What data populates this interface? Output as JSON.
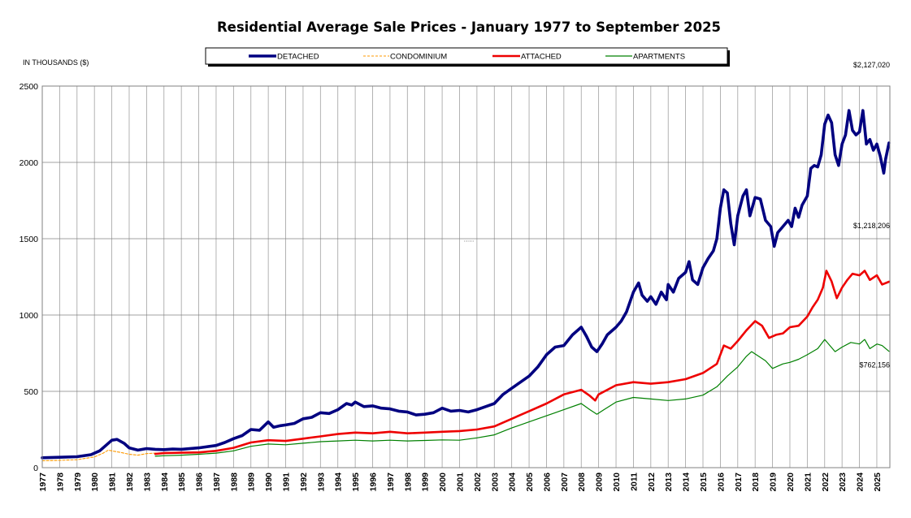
{
  "chart_data": {
    "type": "line",
    "title": "Residential Average Sale Prices  -  January 1977 to September 2025",
    "ylabel": "IN THOUSANDS ($)",
    "xlabel": "",
    "ylim": [
      0,
      2500
    ],
    "xlim": [
      1977.0,
      2025.75
    ],
    "y_ticks": [
      0,
      500,
      1000,
      1500,
      2000,
      2500
    ],
    "x_tick_labels": [
      "1977",
      "1978",
      "1979",
      "1980",
      "1981",
      "1982",
      "1983",
      "1984",
      "1985",
      "1986",
      "1987",
      "1988",
      "1989",
      "1990",
      "1991",
      "1992",
      "1993",
      "1994",
      "1995",
      "1996",
      "1997",
      "1998",
      "1999",
      "2000",
      "2001",
      "2002",
      "2003",
      "2004",
      "2005",
      "2006",
      "2007",
      "2008",
      "2009",
      "2010",
      "2011",
      "2012",
      "2013",
      "2014",
      "2015",
      "2016",
      "2017",
      "2018",
      "2019",
      "2020",
      "2021",
      "2022",
      "2023",
      "2024",
      "2025"
    ],
    "grid": true,
    "legend_position": "top-center",
    "series": [
      {
        "name": "DETACHED",
        "color": "#000080",
        "style": "solid-thick",
        "points": [
          [
            1977,
            65
          ],
          [
            1978,
            68
          ],
          [
            1979,
            72
          ],
          [
            1979.8,
            85
          ],
          [
            1980.3,
            110
          ],
          [
            1980.7,
            150
          ],
          [
            1981,
            180
          ],
          [
            1981.3,
            185
          ],
          [
            1981.7,
            160
          ],
          [
            1982,
            130
          ],
          [
            1982.5,
            115
          ],
          [
            1983,
            125
          ],
          [
            1983.5,
            120
          ],
          [
            1984,
            118
          ],
          [
            1984.5,
            122
          ],
          [
            1985,
            120
          ],
          [
            1986,
            130
          ],
          [
            1987,
            145
          ],
          [
            1987.5,
            165
          ],
          [
            1988,
            190
          ],
          [
            1988.5,
            210
          ],
          [
            1989,
            250
          ],
          [
            1989.5,
            245
          ],
          [
            1990,
            300
          ],
          [
            1990.3,
            265
          ],
          [
            1990.7,
            275
          ],
          [
            1991,
            280
          ],
          [
            1991.5,
            290
          ],
          [
            1992,
            320
          ],
          [
            1992.5,
            330
          ],
          [
            1993,
            360
          ],
          [
            1993.5,
            355
          ],
          [
            1994,
            380
          ],
          [
            1994.5,
            420
          ],
          [
            1994.8,
            410
          ],
          [
            1995,
            430
          ],
          [
            1995.5,
            400
          ],
          [
            1996,
            405
          ],
          [
            1996.5,
            390
          ],
          [
            1997,
            385
          ],
          [
            1997.5,
            370
          ],
          [
            1998,
            365
          ],
          [
            1998.5,
            345
          ],
          [
            1999,
            350
          ],
          [
            1999.5,
            360
          ],
          [
            2000,
            390
          ],
          [
            2000.5,
            370
          ],
          [
            2001,
            375
          ],
          [
            2001.5,
            365
          ],
          [
            2002,
            380
          ],
          [
            2002.5,
            400
          ],
          [
            2003,
            420
          ],
          [
            2003.5,
            480
          ],
          [
            2004,
            520
          ],
          [
            2004.5,
            560
          ],
          [
            2005,
            600
          ],
          [
            2005.5,
            660
          ],
          [
            2006,
            740
          ],
          [
            2006.5,
            790
          ],
          [
            2007,
            800
          ],
          [
            2007.5,
            870
          ],
          [
            2008,
            920
          ],
          [
            2008.3,
            860
          ],
          [
            2008.6,
            790
          ],
          [
            2008.9,
            760
          ],
          [
            2009.2,
            810
          ],
          [
            2009.5,
            870
          ],
          [
            2010,
            920
          ],
          [
            2010.3,
            960
          ],
          [
            2010.6,
            1020
          ],
          [
            2011,
            1150
          ],
          [
            2011.3,
            1210
          ],
          [
            2011.5,
            1130
          ],
          [
            2011.8,
            1090
          ],
          [
            2012,
            1120
          ],
          [
            2012.3,
            1070
          ],
          [
            2012.6,
            1150
          ],
          [
            2012.9,
            1100
          ],
          [
            2013,
            1200
          ],
          [
            2013.3,
            1150
          ],
          [
            2013.6,
            1240
          ],
          [
            2014,
            1280
          ],
          [
            2014.2,
            1350
          ],
          [
            2014.4,
            1230
          ],
          [
            2014.7,
            1200
          ],
          [
            2015,
            1310
          ],
          [
            2015.3,
            1370
          ],
          [
            2015.6,
            1420
          ],
          [
            2015.8,
            1500
          ],
          [
            2016,
            1700
          ],
          [
            2016.2,
            1820
          ],
          [
            2016.4,
            1800
          ],
          [
            2016.6,
            1600
          ],
          [
            2016.8,
            1460
          ],
          [
            2017,
            1650
          ],
          [
            2017.3,
            1780
          ],
          [
            2017.5,
            1820
          ],
          [
            2017.7,
            1650
          ],
          [
            2018,
            1770
          ],
          [
            2018.3,
            1760
          ],
          [
            2018.6,
            1620
          ],
          [
            2018.9,
            1580
          ],
          [
            2019.1,
            1450
          ],
          [
            2019.3,
            1540
          ],
          [
            2019.6,
            1580
          ],
          [
            2019.9,
            1620
          ],
          [
            2020.1,
            1580
          ],
          [
            2020.3,
            1700
          ],
          [
            2020.5,
            1640
          ],
          [
            2020.7,
            1720
          ],
          [
            2021,
            1780
          ],
          [
            2021.2,
            1960
          ],
          [
            2021.4,
            1980
          ],
          [
            2021.6,
            1970
          ],
          [
            2021.8,
            2050
          ],
          [
            2022,
            2250
          ],
          [
            2022.2,
            2310
          ],
          [
            2022.4,
            2260
          ],
          [
            2022.6,
            2050
          ],
          [
            2022.8,
            1980
          ],
          [
            2023,
            2120
          ],
          [
            2023.2,
            2180
          ],
          [
            2023.4,
            2340
          ],
          [
            2023.6,
            2210
          ],
          [
            2023.8,
            2180
          ],
          [
            2024,
            2200
          ],
          [
            2024.2,
            2340
          ],
          [
            2024.4,
            2120
          ],
          [
            2024.6,
            2150
          ],
          [
            2024.8,
            2080
          ],
          [
            2025,
            2120
          ],
          [
            2025.2,
            2040
          ],
          [
            2025.4,
            1930
          ],
          [
            2025.5,
            2020
          ],
          [
            2025.7,
            2127
          ]
        ]
      },
      {
        "name": "CONDOMINIUM",
        "color": "#ff9900",
        "style": "dashed-thin",
        "points": [
          [
            1977,
            45
          ],
          [
            1978,
            48
          ],
          [
            1979,
            52
          ],
          [
            1980,
            70
          ],
          [
            1980.5,
            95
          ],
          [
            1980.8,
            115
          ],
          [
            1981,
            110
          ],
          [
            1981.5,
            100
          ],
          [
            1982,
            88
          ],
          [
            1982.5,
            82
          ],
          [
            1983,
            92
          ],
          [
            1983.5,
            95
          ],
          [
            1984,
            90
          ]
        ]
      },
      {
        "name": "ATTACHED",
        "color": "#ee0000",
        "style": "solid-medium",
        "points": [
          [
            1983.5,
            90
          ],
          [
            1984,
            95
          ],
          [
            1985,
            98
          ],
          [
            1986,
            100
          ],
          [
            1987,
            110
          ],
          [
            1988,
            130
          ],
          [
            1989,
            165
          ],
          [
            1990,
            180
          ],
          [
            1991,
            175
          ],
          [
            1992,
            190
          ],
          [
            1993,
            205
          ],
          [
            1994,
            220
          ],
          [
            1995,
            230
          ],
          [
            1996,
            225
          ],
          [
            1997,
            235
          ],
          [
            1998,
            225
          ],
          [
            1999,
            230
          ],
          [
            2000,
            235
          ],
          [
            2001,
            240
          ],
          [
            2002,
            250
          ],
          [
            2003,
            270
          ],
          [
            2004,
            320
          ],
          [
            2005,
            370
          ],
          [
            2006,
            420
          ],
          [
            2007,
            480
          ],
          [
            2008,
            510
          ],
          [
            2008.5,
            470
          ],
          [
            2008.8,
            440
          ],
          [
            2009,
            480
          ],
          [
            2010,
            540
          ],
          [
            2011,
            560
          ],
          [
            2012,
            550
          ],
          [
            2013,
            560
          ],
          [
            2014,
            580
          ],
          [
            2015,
            620
          ],
          [
            2015.8,
            680
          ],
          [
            2016.2,
            800
          ],
          [
            2016.6,
            780
          ],
          [
            2017,
            830
          ],
          [
            2017.5,
            900
          ],
          [
            2018,
            960
          ],
          [
            2018.4,
            930
          ],
          [
            2018.8,
            850
          ],
          [
            2019.2,
            870
          ],
          [
            2019.6,
            880
          ],
          [
            2020,
            920
          ],
          [
            2020.5,
            930
          ],
          [
            2021,
            990
          ],
          [
            2021.3,
            1050
          ],
          [
            2021.6,
            1100
          ],
          [
            2021.9,
            1180
          ],
          [
            2022.1,
            1290
          ],
          [
            2022.4,
            1220
          ],
          [
            2022.7,
            1110
          ],
          [
            2023,
            1180
          ],
          [
            2023.3,
            1230
          ],
          [
            2023.6,
            1270
          ],
          [
            2024,
            1260
          ],
          [
            2024.3,
            1290
          ],
          [
            2024.6,
            1230
          ],
          [
            2025,
            1260
          ],
          [
            2025.3,
            1200
          ],
          [
            2025.7,
            1218
          ]
        ]
      },
      {
        "name": "APARTMENTS",
        "color": "#008000",
        "style": "solid-thin",
        "points": [
          [
            1983.5,
            75
          ],
          [
            1984,
            78
          ],
          [
            1985,
            82
          ],
          [
            1986,
            88
          ],
          [
            1987,
            95
          ],
          [
            1988,
            110
          ],
          [
            1989,
            140
          ],
          [
            1990,
            155
          ],
          [
            1991,
            150
          ],
          [
            1992,
            160
          ],
          [
            1993,
            170
          ],
          [
            1994,
            175
          ],
          [
            1995,
            180
          ],
          [
            1996,
            175
          ],
          [
            1997,
            180
          ],
          [
            1998,
            175
          ],
          [
            1999,
            178
          ],
          [
            2000,
            182
          ],
          [
            2001,
            180
          ],
          [
            2002,
            195
          ],
          [
            2003,
            215
          ],
          [
            2004,
            260
          ],
          [
            2005,
            300
          ],
          [
            2006,
            340
          ],
          [
            2007,
            380
          ],
          [
            2008,
            420
          ],
          [
            2008.5,
            380
          ],
          [
            2008.9,
            350
          ],
          [
            2009.3,
            380
          ],
          [
            2010,
            430
          ],
          [
            2011,
            460
          ],
          [
            2012,
            450
          ],
          [
            2013,
            440
          ],
          [
            2014,
            450
          ],
          [
            2015,
            475
          ],
          [
            2015.8,
            530
          ],
          [
            2016.4,
            600
          ],
          [
            2017,
            660
          ],
          [
            2017.5,
            730
          ],
          [
            2017.8,
            760
          ],
          [
            2018.2,
            730
          ],
          [
            2018.6,
            700
          ],
          [
            2019,
            650
          ],
          [
            2019.6,
            680
          ],
          [
            2020,
            690
          ],
          [
            2020.5,
            710
          ],
          [
            2021,
            740
          ],
          [
            2021.6,
            780
          ],
          [
            2022,
            840
          ],
          [
            2022.3,
            800
          ],
          [
            2022.6,
            760
          ],
          [
            2023,
            790
          ],
          [
            2023.5,
            820
          ],
          [
            2024,
            810
          ],
          [
            2024.3,
            840
          ],
          [
            2024.6,
            780
          ],
          [
            2025,
            810
          ],
          [
            2025.3,
            800
          ],
          [
            2025.7,
            762
          ]
        ]
      }
    ],
    "annotations": [
      {
        "text": "$2,127,020",
        "x": 2025.7,
        "y": 2127,
        "series": "DETACHED"
      },
      {
        "text": "$1,218,206",
        "x": 2025.7,
        "y": 1218,
        "series": "ATTACHED"
      },
      {
        "text": "$762,156",
        "x": 2025.7,
        "y": 762,
        "series": "APARTMENTS"
      }
    ]
  }
}
